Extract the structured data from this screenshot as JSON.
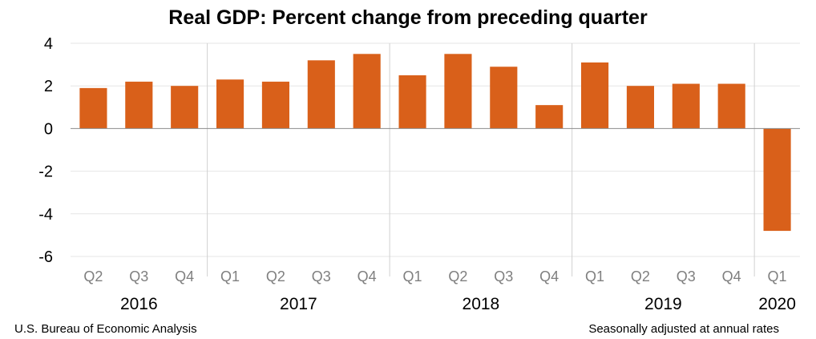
{
  "chart_data": {
    "type": "bar",
    "title": "Real GDP:  Percent change from preceding quarter",
    "categories": [
      "Q2",
      "Q3",
      "Q4",
      "Q1",
      "Q2",
      "Q3",
      "Q4",
      "Q1",
      "Q2",
      "Q3",
      "Q4",
      "Q1",
      "Q2",
      "Q3",
      "Q4",
      "Q1"
    ],
    "years": [
      {
        "label": "2016",
        "count": 3
      },
      {
        "label": "2017",
        "count": 4
      },
      {
        "label": "2018",
        "count": 4
      },
      {
        "label": "2019",
        "count": 4
      },
      {
        "label": "2020",
        "count": 1
      }
    ],
    "values": [
      1.9,
      2.2,
      2.0,
      2.3,
      2.2,
      3.2,
      3.5,
      2.5,
      3.5,
      2.9,
      1.1,
      3.1,
      2.0,
      2.1,
      2.1,
      -4.8
    ],
    "ylim": [
      -6,
      4
    ],
    "yticks": [
      4,
      2,
      0,
      -2,
      -4,
      -6
    ],
    "grid": true,
    "bar_color": "#d9601a",
    "xlabel": "",
    "ylabel": ""
  },
  "footer": {
    "source": "U.S. Bureau of Economic Analysis",
    "note": "Seasonally adjusted at annual rates"
  }
}
